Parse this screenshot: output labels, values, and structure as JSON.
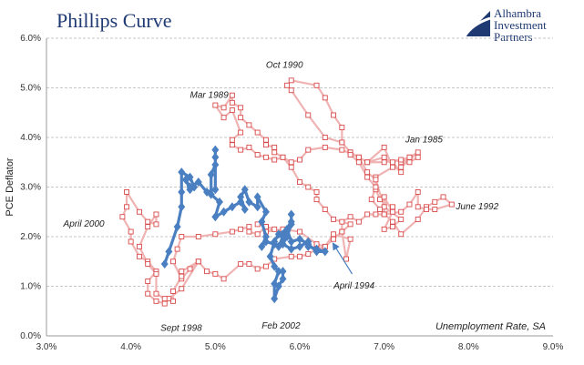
{
  "header": {
    "title": "Phillips Curve",
    "brand_lines": [
      "Alhambra",
      "Investment",
      "Partners"
    ]
  },
  "colors": {
    "title": "#1f3a73",
    "series_1990s": "#f0b3b3",
    "markers_1990s": "#d94a4a",
    "series_2000s": "#4a7fc1",
    "grid": "#b5b5b5"
  },
  "chart_data": {
    "type": "line",
    "title": "Phillips Curve",
    "xlabel": "Unemployment Rate, SA",
    "ylabel": "PCE Deflator",
    "xlim": [
      3.0,
      9.0
    ],
    "ylim": [
      0.0,
      6.0
    ],
    "x_ticks": [
      "3.0%",
      "4.0%",
      "5.0%",
      "6.0%",
      "7.0%",
      "8.0%",
      "9.0%"
    ],
    "y_ticks": [
      "0.0%",
      "1.0%",
      "2.0%",
      "3.0%",
      "4.0%",
      "5.0%",
      "6.0%"
    ],
    "grid": true,
    "series": [
      {
        "values_xy": [
          [
            7.3,
            3.6
          ],
          [
            7.2,
            3.5
          ],
          [
            7.4,
            3.7
          ],
          [
            7.2,
            3.4
          ],
          [
            7.3,
            3.6
          ],
          [
            7.1,
            3.5
          ],
          [
            7.2,
            3.3
          ],
          [
            7.0,
            3.6
          ],
          [
            6.8,
            3.5
          ],
          [
            7.0,
            3.8
          ],
          [
            7.1,
            3.4
          ],
          [
            6.9,
            3.2
          ],
          [
            6.9,
            2.95
          ],
          [
            6.95,
            2.75
          ],
          [
            7.1,
            2.6
          ],
          [
            7.0,
            2.45
          ],
          [
            7.0,
            2.8
          ],
          [
            7.1,
            2.5
          ],
          [
            7.0,
            2.15
          ],
          [
            7.1,
            2.2
          ],
          [
            7.2,
            2.35
          ],
          [
            7.0,
            2.6
          ],
          [
            6.9,
            3.15
          ],
          [
            6.8,
            3.3
          ],
          [
            6.7,
            3.6
          ],
          [
            6.6,
            3.7
          ],
          [
            6.5,
            3.9
          ],
          [
            6.3,
            4.0
          ],
          [
            6.1,
            4.45
          ],
          [
            5.9,
            4.95
          ],
          [
            5.85,
            5.05
          ],
          [
            5.9,
            5.15
          ],
          [
            6.2,
            5.05
          ],
          [
            6.3,
            4.8
          ],
          [
            6.4,
            4.45
          ],
          [
            6.5,
            4.2
          ],
          [
            6.5,
            3.9
          ],
          [
            6.6,
            3.7
          ],
          [
            6.6,
            3.65
          ],
          [
            6.7,
            3.5
          ],
          [
            6.8,
            3.2
          ],
          [
            6.9,
            3.0
          ],
          [
            6.85,
            2.75
          ],
          [
            6.95,
            2.55
          ],
          [
            7.1,
            2.3
          ],
          [
            7.2,
            2.05
          ],
          [
            7.4,
            2.35
          ],
          [
            7.5,
            2.6
          ],
          [
            7.6,
            2.7
          ],
          [
            7.7,
            2.8
          ],
          [
            7.8,
            2.65
          ],
          [
            7.6,
            2.55
          ],
          [
            7.5,
            2.55
          ],
          [
            7.4,
            2.6
          ],
          [
            7.4,
            2.9
          ],
          [
            7.3,
            2.65
          ],
          [
            7.2,
            2.5
          ],
          [
            7.0,
            2.45
          ],
          [
            6.9,
            2.45
          ],
          [
            6.8,
            2.45
          ],
          [
            6.7,
            2.3
          ],
          [
            6.6,
            2.4
          ],
          [
            6.5,
            2.3
          ],
          [
            6.5,
            2.1
          ],
          [
            6.55,
            1.55
          ],
          [
            6.6,
            1.95
          ],
          [
            6.4,
            2.05
          ],
          [
            6.3,
            1.8
          ],
          [
            6.2,
            1.85
          ],
          [
            6.0,
            2.1
          ],
          [
            5.8,
            2.15
          ],
          [
            5.6,
            2.1
          ],
          [
            5.7,
            2.15
          ],
          [
            5.6,
            2.2
          ],
          [
            5.5,
            2.25
          ],
          [
            5.6,
            2.2
          ],
          [
            5.5,
            2.05
          ],
          [
            5.4,
            2.1
          ],
          [
            5.4,
            2.2
          ],
          [
            5.3,
            2.15
          ],
          [
            5.2,
            2.1
          ],
          [
            5.0,
            2.05
          ],
          [
            4.8,
            2.0
          ],
          [
            4.6,
            2.0
          ],
          [
            4.55,
            1.75
          ],
          [
            4.5,
            1.5
          ],
          [
            4.6,
            1.15
          ],
          [
            4.7,
            1.35
          ],
          [
            4.8,
            1.5
          ],
          [
            4.6,
            0.95
          ],
          [
            4.45,
            0.75
          ],
          [
            4.4,
            0.65
          ],
          [
            4.3,
            0.7
          ],
          [
            4.2,
            0.85
          ],
          [
            4.2,
            1.1
          ],
          [
            4.3,
            1.3
          ],
          [
            4.2,
            1.5
          ],
          [
            4.1,
            1.6
          ],
          [
            4.0,
            1.9
          ],
          [
            4.0,
            2.1
          ],
          [
            3.9,
            2.4
          ],
          [
            3.95,
            2.6
          ],
          [
            3.95,
            2.9
          ],
          [
            4.1,
            2.5
          ],
          [
            4.2,
            2.3
          ],
          [
            4.3,
            2.25
          ],
          [
            4.3,
            2.45
          ],
          [
            4.2,
            2.2
          ],
          [
            4.1,
            1.8
          ],
          [
            4.2,
            1.45
          ],
          [
            4.3,
            1.25
          ],
          [
            4.3,
            0.85
          ],
          [
            4.4,
            0.75
          ],
          [
            4.5,
            0.7
          ],
          [
            4.5,
            0.9
          ],
          [
            4.6,
            1.2
          ],
          [
            4.6,
            1.3
          ],
          [
            4.8,
            1.5
          ],
          [
            4.9,
            1.3
          ],
          [
            5.0,
            1.25
          ],
          [
            5.1,
            1.15
          ],
          [
            5.3,
            1.45
          ],
          [
            5.4,
            1.45
          ],
          [
            5.5,
            1.35
          ],
          [
            5.6,
            1.4
          ],
          [
            5.7,
            1.55
          ],
          [
            5.9,
            1.6
          ],
          [
            6.0,
            1.6
          ],
          [
            6.1,
            1.65
          ],
          [
            6.2,
            1.75
          ],
          [
            6.3,
            1.8
          ],
          [
            6.4,
            1.95
          ],
          [
            6.5,
            2.1
          ],
          [
            6.6,
            2.25
          ],
          [
            6.4,
            2.35
          ],
          [
            6.3,
            2.55
          ],
          [
            6.2,
            2.75
          ],
          [
            6.2,
            2.9
          ],
          [
            6.1,
            3.0
          ],
          [
            6.0,
            3.1
          ],
          [
            5.9,
            3.4
          ],
          [
            5.8,
            3.6
          ],
          [
            5.7,
            3.7
          ],
          [
            5.7,
            3.8
          ],
          [
            5.6,
            3.85
          ],
          [
            5.6,
            3.95
          ],
          [
            5.5,
            4.1
          ],
          [
            5.4,
            4.25
          ],
          [
            5.3,
            4.4
          ],
          [
            5.3,
            4.6
          ],
          [
            5.2,
            4.7
          ],
          [
            5.2,
            4.85
          ],
          [
            5.1,
            4.6
          ],
          [
            5.0,
            4.65
          ],
          [
            5.1,
            4.4
          ],
          [
            5.2,
            4.55
          ],
          [
            5.3,
            4.1
          ],
          [
            5.2,
            3.95
          ],
          [
            5.2,
            3.85
          ],
          [
            5.3,
            3.75
          ],
          [
            5.4,
            3.8
          ],
          [
            5.5,
            3.65
          ],
          [
            5.6,
            3.6
          ],
          [
            5.7,
            3.55
          ],
          [
            5.8,
            3.6
          ],
          [
            5.9,
            3.5
          ],
          [
            6.0,
            3.55
          ],
          [
            6.1,
            3.75
          ],
          [
            6.3,
            3.8
          ],
          [
            6.5,
            3.75
          ],
          [
            6.7,
            3.6
          ],
          [
            6.8,
            3.5
          ],
          [
            7.0,
            3.5
          ],
          [
            7.2,
            3.55
          ],
          [
            7.3,
            3.5
          ],
          [
            7.4,
            3.6
          ]
        ]
      },
      {
        "values_xy": [
          [
            4.4,
            1.45
          ],
          [
            4.45,
            1.7
          ],
          [
            4.55,
            2.2
          ],
          [
            4.6,
            2.6
          ],
          [
            4.6,
            2.9
          ],
          [
            4.6,
            3.3
          ],
          [
            4.7,
            3.2
          ],
          [
            4.75,
            3.0
          ],
          [
            4.7,
            2.95
          ],
          [
            4.65,
            3.15
          ],
          [
            4.7,
            3.0
          ],
          [
            4.8,
            3.1
          ],
          [
            4.9,
            2.9
          ],
          [
            5.0,
            2.95
          ],
          [
            5.0,
            3.6
          ],
          [
            5.0,
            3.75
          ],
          [
            5.0,
            3.45
          ],
          [
            4.95,
            3.25
          ],
          [
            4.95,
            2.85
          ],
          [
            5.05,
            2.7
          ],
          [
            5.0,
            2.4
          ],
          [
            5.1,
            2.5
          ],
          [
            5.2,
            2.6
          ],
          [
            5.3,
            2.7
          ],
          [
            5.35,
            2.55
          ],
          [
            5.3,
            2.8
          ],
          [
            5.35,
            2.95
          ],
          [
            5.4,
            2.7
          ],
          [
            5.5,
            2.6
          ],
          [
            5.5,
            2.8
          ],
          [
            5.6,
            2.5
          ],
          [
            5.55,
            2.3
          ],
          [
            5.6,
            2.0
          ],
          [
            5.55,
            1.8
          ],
          [
            5.6,
            1.9
          ],
          [
            5.7,
            1.85
          ],
          [
            5.75,
            1.8
          ],
          [
            5.8,
            2.0
          ],
          [
            5.85,
            2.15
          ],
          [
            5.9,
            2.3
          ],
          [
            5.9,
            2.45
          ],
          [
            5.9,
            2.25
          ],
          [
            5.85,
            2.0
          ],
          [
            5.8,
            1.85
          ],
          [
            5.9,
            1.75
          ],
          [
            6.0,
            1.8
          ],
          [
            6.1,
            1.9
          ],
          [
            6.1,
            1.8
          ],
          [
            6.2,
            1.75
          ],
          [
            6.3,
            1.7
          ],
          [
            6.2,
            1.7
          ],
          [
            6.1,
            1.85
          ],
          [
            6.0,
            1.95
          ],
          [
            5.9,
            1.9
          ],
          [
            5.85,
            2.15
          ],
          [
            5.75,
            2.05
          ],
          [
            5.7,
            1.9
          ],
          [
            5.65,
            1.6
          ],
          [
            5.7,
            1.4
          ],
          [
            5.75,
            1.3
          ],
          [
            5.7,
            1.05
          ],
          [
            5.7,
            0.75
          ],
          [
            5.75,
            1.0
          ],
          [
            5.8,
            1.15
          ],
          [
            5.8,
            1.3
          ]
        ]
      }
    ],
    "annotations": [
      {
        "text": "Oct 1990",
        "x": 5.6,
        "y": 5.4
      },
      {
        "text": "Mar 1989",
        "x": 4.7,
        "y": 4.8
      },
      {
        "text": "Jan 1985",
        "x": 7.25,
        "y": 3.9
      },
      {
        "text": "June 1992",
        "x": 7.85,
        "y": 2.55
      },
      {
        "text": "April 2000",
        "x": 3.2,
        "y": 2.2
      },
      {
        "text": "April 1994",
        "x": 6.4,
        "y": 0.95
      },
      {
        "text": "Sept 1998",
        "x": 4.35,
        "y": 0.1
      },
      {
        "text": "Feb 2002",
        "x": 5.55,
        "y": 0.15
      }
    ],
    "arrow": {
      "from": [
        6.62,
        1.25
      ],
      "to": [
        6.4,
        1.85
      ]
    }
  }
}
